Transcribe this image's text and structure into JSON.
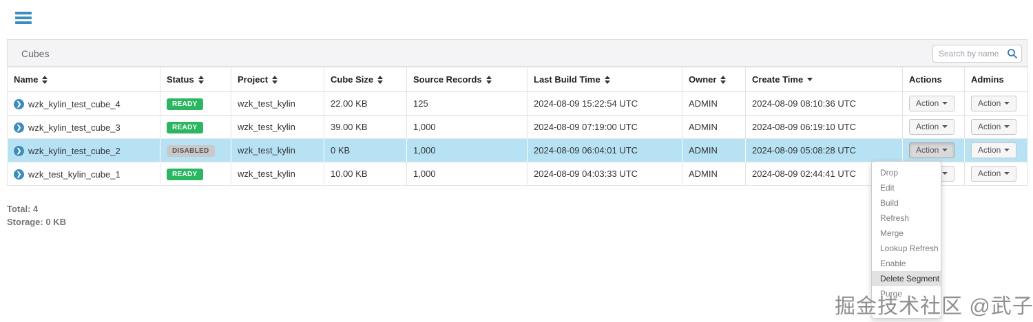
{
  "colors": {
    "accent_blue": "#3c8dbc",
    "ready_green": "#2bb661",
    "disabled_gray": "#c9c9c9",
    "row_highlight": "#b7e2f3"
  },
  "panel": {
    "title": "Cubes",
    "search_placeholder": "Search by name"
  },
  "table": {
    "action_button_label": "Action",
    "columns": [
      {
        "key": "name",
        "label": "Name",
        "sort": "both"
      },
      {
        "key": "status",
        "label": "Status",
        "sort": "both"
      },
      {
        "key": "project",
        "label": "Project",
        "sort": "both"
      },
      {
        "key": "cube_size",
        "label": "Cube Size",
        "sort": "both"
      },
      {
        "key": "source_records",
        "label": "Source Records",
        "sort": "both"
      },
      {
        "key": "last_build_time",
        "label": "Last Build Time",
        "sort": "both"
      },
      {
        "key": "owner",
        "label": "Owner",
        "sort": "both"
      },
      {
        "key": "create_time",
        "label": "Create Time",
        "sort": "desc"
      },
      {
        "key": "actions",
        "label": "Actions",
        "sort": "none"
      },
      {
        "key": "admins",
        "label": "Admins",
        "sort": "none"
      }
    ],
    "rows": [
      {
        "name": "wzk_kylin_test_cube_4",
        "status": "READY",
        "project": "wzk_test_kylin",
        "cube_size": "22.00 KB",
        "source_records": "125",
        "last_build_time": "2024-08-09 15:22:54 UTC",
        "owner": "ADMIN",
        "create_time": "2024-08-09 08:10:36 UTC",
        "highlighted": false,
        "action_open": false
      },
      {
        "name": "wzk_kylin_test_cube_3",
        "status": "READY",
        "project": "wzk_test_kylin",
        "cube_size": "39.00 KB",
        "source_records": "1,000",
        "last_build_time": "2024-08-09 07:19:00 UTC",
        "owner": "ADMIN",
        "create_time": "2024-08-09 06:19:10 UTC",
        "highlighted": false,
        "action_open": false
      },
      {
        "name": "wzk_kylin_test_cube_2",
        "status": "DISABLED",
        "project": "wzk_test_kylin",
        "cube_size": "0 KB",
        "source_records": "1,000",
        "last_build_time": "2024-08-09 06:04:01 UTC",
        "owner": "ADMIN",
        "create_time": "2024-08-09 05:08:28 UTC",
        "highlighted": true,
        "action_open": true
      },
      {
        "name": "wzk_test_kylin_cube_1",
        "status": "READY",
        "project": "wzk_test_kylin",
        "cube_size": "10.00 KB",
        "source_records": "1,000",
        "last_build_time": "2024-08-09 04:03:33 UTC",
        "owner": "ADMIN",
        "create_time": "2024-08-09 02:44:41 UTC",
        "highlighted": false,
        "action_open": false
      }
    ]
  },
  "dropdown": {
    "items": [
      {
        "label": "Drop",
        "highlighted": false
      },
      {
        "label": "Edit",
        "highlighted": false
      },
      {
        "label": "Build",
        "highlighted": false
      },
      {
        "label": "Refresh",
        "highlighted": false
      },
      {
        "label": "Merge",
        "highlighted": false
      },
      {
        "label": "Lookup Refresh",
        "highlighted": false
      },
      {
        "label": "Enable",
        "highlighted": false
      },
      {
        "label": "Delete Segment",
        "highlighted": true
      },
      {
        "label": "Purge",
        "highlighted": false
      }
    ]
  },
  "footer": {
    "total": "Total: 4",
    "storage": "Storage: 0 KB"
  },
  "watermark": "掘金技术社区 @武子康"
}
